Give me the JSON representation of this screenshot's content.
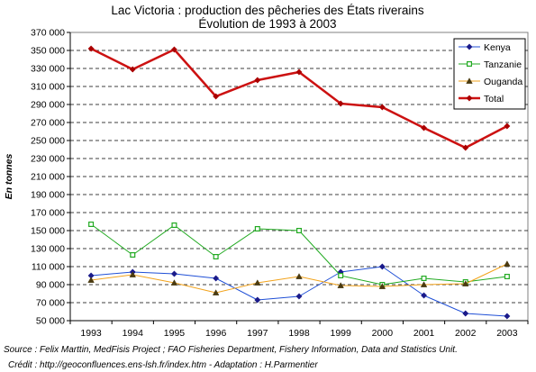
{
  "chart_data": {
    "type": "line",
    "title": "Lac Victoria : production des pêcheries des États riverains",
    "subtitle": "Évolution de 1993 à 2003",
    "ylabel": "En tonnes",
    "xlabel": "",
    "x": [
      "1993",
      "1994",
      "1995",
      "1996",
      "1997",
      "1998",
      "1999",
      "2000",
      "2001",
      "2002",
      "2003"
    ],
    "ylim": [
      50000,
      370000
    ],
    "yticks": [
      50000,
      70000,
      90000,
      110000,
      130000,
      150000,
      170000,
      190000,
      210000,
      230000,
      250000,
      270000,
      290000,
      310000,
      330000,
      350000,
      370000
    ],
    "ytick_labels": [
      "50 000",
      "70 000",
      "90 000",
      "110 000",
      "130 000",
      "150 000",
      "170 000",
      "190 000",
      "210 000",
      "230 000",
      "250 000",
      "270 000",
      "290 000",
      "310 000",
      "330 000",
      "350 000",
      "370 000"
    ],
    "grid": true,
    "legend_position": "top-right",
    "series": [
      {
        "name": "Kenya",
        "color": "#1f4fd6",
        "marker": "diamond",
        "width": 1,
        "values": [
          100000,
          104000,
          102000,
          97000,
          73000,
          77000,
          104000,
          110000,
          78000,
          58000,
          55000
        ]
      },
      {
        "name": "Tanzanie",
        "color": "#22aa22",
        "marker": "square",
        "width": 1,
        "values": [
          157000,
          123000,
          156000,
          121000,
          152000,
          150000,
          100000,
          90000,
          97000,
          93000,
          99000
        ]
      },
      {
        "name": "Ouganda",
        "color": "#f2a31c",
        "marker": "triangle",
        "width": 1,
        "values": [
          95000,
          101000,
          92000,
          81000,
          92000,
          99000,
          89000,
          88000,
          90000,
          91000,
          113000
        ]
      },
      {
        "name": "Total",
        "color": "#cc1111",
        "marker": "diamond",
        "width": 2.5,
        "values": [
          352000,
          329000,
          351000,
          299000,
          317000,
          326000,
          291000,
          287000,
          264000,
          242000,
          266000
        ]
      }
    ]
  },
  "source": {
    "line1": "Source : Felix Marttin, MedFisis Project ;  FAO Fisheries Department, Fishery Information, Data and Statistics Unit.",
    "line2": "Crédit : http://geoconfluences.ens-lsh.fr/index.htm - Adaptation : H.Parmentier"
  }
}
